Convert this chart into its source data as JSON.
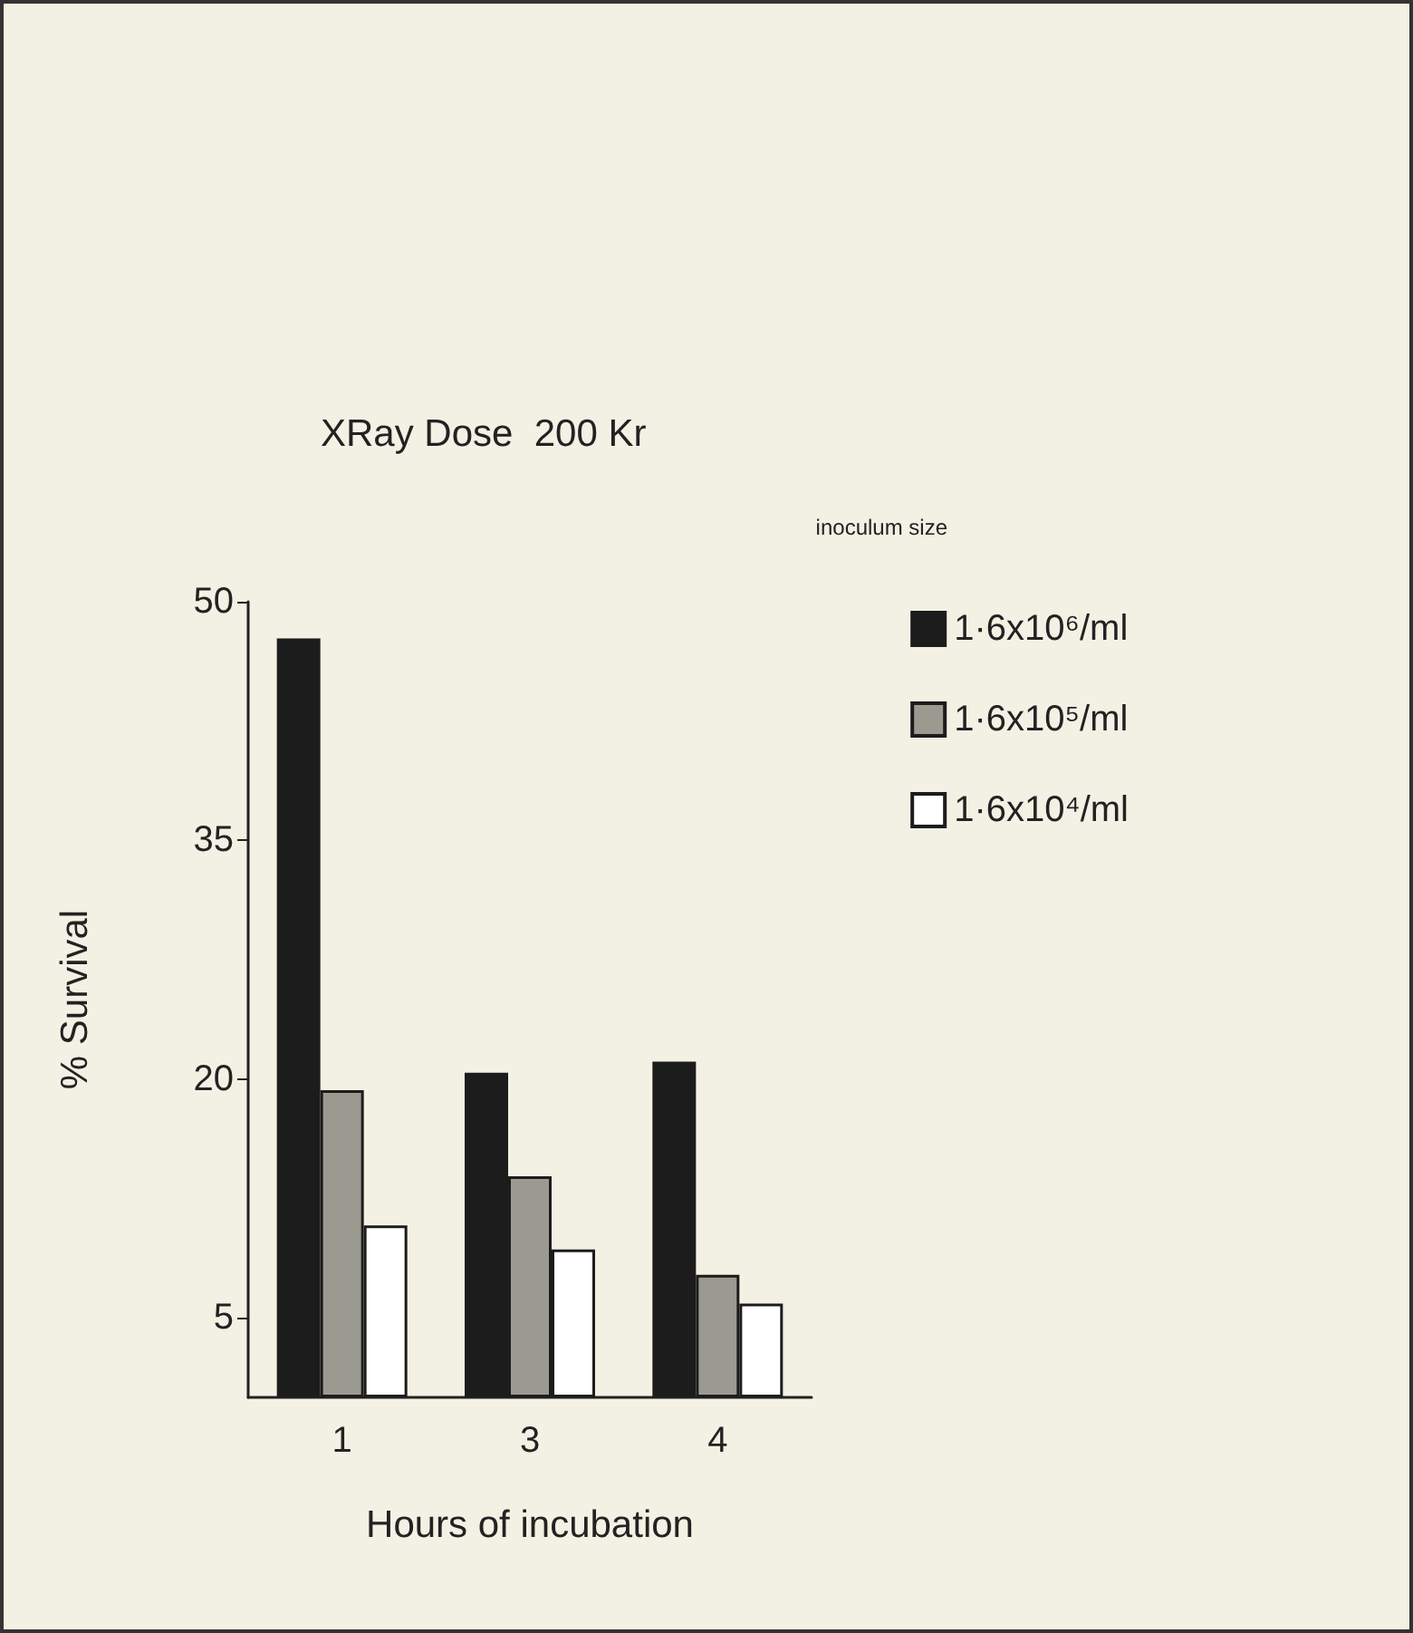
{
  "chart_data": {
    "type": "bar",
    "title": "XRay Dose  200 Kr",
    "xlabel": "Hours of incubation",
    "ylabel": "% Survival",
    "legend_title": "inoculum size",
    "categories": [
      "1",
      "3",
      "4"
    ],
    "series": [
      {
        "name": "1·6x10⁶/ml",
        "color": "#1c1c1c",
        "values": [
          47.7,
          20.4,
          21.1
        ]
      },
      {
        "name": "1·6x10⁵/ml",
        "color": "#9a9a90",
        "values": [
          19.3,
          13.9,
          7.7
        ]
      },
      {
        "name": "1·6x10⁴/ml",
        "color": "#ffffff",
        "values": [
          10.8,
          9.3,
          5.9
        ]
      }
    ],
    "ylim": [
      0,
      50
    ],
    "yticks": [
      5,
      20,
      35,
      50
    ],
    "grid": false,
    "legend": "top right"
  }
}
